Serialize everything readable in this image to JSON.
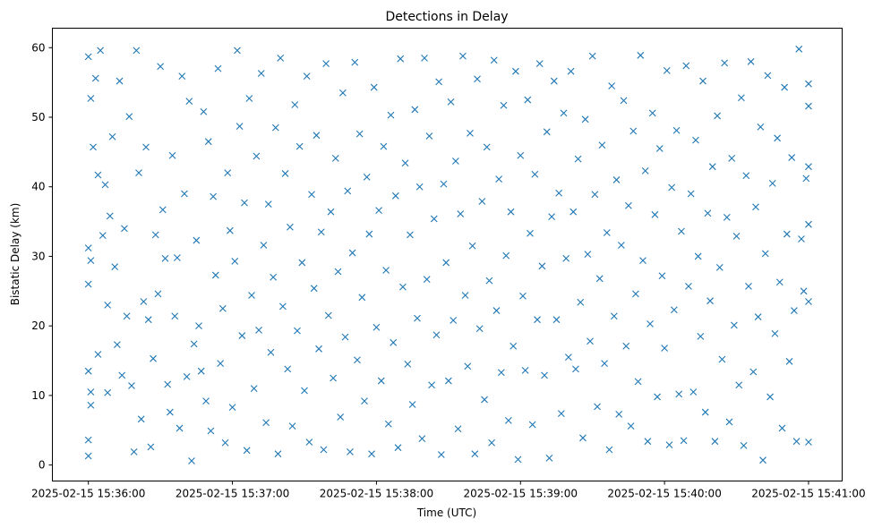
{
  "chart_data": {
    "type": "scatter",
    "title": "Detections in Delay",
    "xlabel": "Time (UTC)",
    "ylabel": "Bistatic Delay (km)",
    "x_units": "seconds since 2025-02-15 15:36:00",
    "xlim": [
      -15,
      314
    ],
    "ylim": [
      -2.3,
      62.8
    ],
    "x_ticks": [
      {
        "value": 0,
        "label": "2025-02-15 15:36:00"
      },
      {
        "value": 60,
        "label": "2025-02-15 15:37:00"
      },
      {
        "value": 120,
        "label": "2025-02-15 15:38:00"
      },
      {
        "value": 180,
        "label": "2025-02-15 15:39:00"
      },
      {
        "value": 240,
        "label": "2025-02-15 15:40:00"
      },
      {
        "value": 300,
        "label": "2025-02-15 15:41:00"
      }
    ],
    "y_ticks": [
      {
        "value": 0,
        "label": "0"
      },
      {
        "value": 10,
        "label": "10"
      },
      {
        "value": 20,
        "label": "20"
      },
      {
        "value": 30,
        "label": "30"
      },
      {
        "value": 40,
        "label": "40"
      },
      {
        "value": 50,
        "label": "50"
      },
      {
        "value": 60,
        "label": "60"
      }
    ],
    "grid": false,
    "marker": "x",
    "color": "#1f77b4",
    "points": [
      [
        0,
        31.2
      ],
      [
        0,
        26
      ],
      [
        0,
        13.5
      ],
      [
        0,
        3.6
      ],
      [
        0,
        1.3
      ],
      [
        0,
        58.7
      ],
      [
        1,
        52.7
      ],
      [
        1,
        29.4
      ],
      [
        1,
        8.6
      ],
      [
        1,
        10.5
      ],
      [
        2,
        45.7
      ],
      [
        3,
        55.6
      ],
      [
        4,
        41.7
      ],
      [
        4,
        15.9
      ],
      [
        5,
        59.6
      ],
      [
        6,
        33
      ],
      [
        7,
        40.3
      ],
      [
        8,
        10.4
      ],
      [
        8,
        23
      ],
      [
        9,
        35.8
      ],
      [
        10,
        47.2
      ],
      [
        11,
        28.5
      ],
      [
        12,
        17.3
      ],
      [
        13,
        55.2
      ],
      [
        14,
        12.9
      ],
      [
        15,
        34
      ],
      [
        16,
        21.4
      ],
      [
        17,
        50.1
      ],
      [
        18,
        11.4
      ],
      [
        19,
        1.9
      ],
      [
        20,
        59.6
      ],
      [
        21,
        42
      ],
      [
        22,
        6.6
      ],
      [
        23,
        23.5
      ],
      [
        24,
        45.7
      ],
      [
        25,
        20.9
      ],
      [
        26,
        2.6
      ],
      [
        27,
        15.3
      ],
      [
        28,
        33.1
      ],
      [
        29,
        24.6
      ],
      [
        30,
        57.3
      ],
      [
        31,
        36.7
      ],
      [
        32,
        29.7
      ],
      [
        33,
        11.6
      ],
      [
        34,
        7.6
      ],
      [
        35,
        44.5
      ],
      [
        36,
        21.4
      ],
      [
        37,
        29.8
      ],
      [
        38,
        5.3
      ],
      [
        39,
        55.9
      ],
      [
        40,
        39
      ],
      [
        41,
        12.7
      ],
      [
        42,
        52.3
      ],
      [
        43,
        0.6
      ],
      [
        44,
        17.4
      ],
      [
        45,
        32.3
      ],
      [
        46,
        20
      ],
      [
        47,
        13.5
      ],
      [
        48,
        50.8
      ],
      [
        49,
        9.2
      ],
      [
        50,
        46.5
      ],
      [
        51,
        4.9
      ],
      [
        52,
        38.6
      ],
      [
        53,
        27.3
      ],
      [
        54,
        57
      ],
      [
        55,
        14.6
      ],
      [
        56,
        22.5
      ],
      [
        57,
        3.2
      ],
      [
        58,
        42
      ],
      [
        59,
        33.7
      ],
      [
        60,
        8.3
      ],
      [
        61,
        29.3
      ],
      [
        62,
        59.6
      ],
      [
        63,
        48.7
      ],
      [
        64,
        18.6
      ],
      [
        65,
        37.7
      ],
      [
        66,
        2.1
      ],
      [
        67,
        52.7
      ],
      [
        68,
        24.4
      ],
      [
        69,
        11
      ],
      [
        70,
        44.4
      ],
      [
        71,
        19.4
      ],
      [
        72,
        56.3
      ],
      [
        73,
        31.6
      ],
      [
        74,
        6.1
      ],
      [
        75,
        37.5
      ],
      [
        76,
        16.2
      ],
      [
        77,
        27
      ],
      [
        78,
        48.5
      ],
      [
        79,
        1.6
      ],
      [
        80,
        58.5
      ],
      [
        81,
        22.8
      ],
      [
        82,
        41.9
      ],
      [
        83,
        13.8
      ],
      [
        84,
        34.2
      ],
      [
        85,
        5.6
      ],
      [
        86,
        51.8
      ],
      [
        87,
        19.3
      ],
      [
        88,
        45.8
      ],
      [
        89,
        29.1
      ],
      [
        90,
        10.7
      ],
      [
        91,
        55.9
      ],
      [
        92,
        3.3
      ],
      [
        93,
        38.9
      ],
      [
        94,
        25.4
      ],
      [
        95,
        47.4
      ],
      [
        96,
        16.7
      ],
      [
        97,
        33.5
      ],
      [
        98,
        2.2
      ],
      [
        99,
        57.7
      ],
      [
        100,
        21.5
      ],
      [
        101,
        36.4
      ],
      [
        102,
        12.5
      ],
      [
        103,
        44.1
      ],
      [
        104,
        27.8
      ],
      [
        105,
        6.9
      ],
      [
        106,
        53.5
      ],
      [
        107,
        18.4
      ],
      [
        108,
        39.4
      ],
      [
        109,
        1.9
      ],
      [
        110,
        30.5
      ],
      [
        111,
        57.9
      ],
      [
        112,
        15.1
      ],
      [
        113,
        47.6
      ],
      [
        114,
        24.1
      ],
      [
        115,
        9.2
      ],
      [
        116,
        41.4
      ],
      [
        117,
        33.2
      ],
      [
        118,
        1.6
      ],
      [
        119,
        54.3
      ],
      [
        120,
        19.8
      ],
      [
        121,
        36.6
      ],
      [
        122,
        12.1
      ],
      [
        123,
        45.8
      ],
      [
        124,
        28
      ],
      [
        125,
        5.9
      ],
      [
        126,
        50.3
      ],
      [
        127,
        17.6
      ],
      [
        128,
        38.7
      ],
      [
        129,
        2.5
      ],
      [
        130,
        58.4
      ],
      [
        131,
        25.6
      ],
      [
        132,
        43.4
      ],
      [
        133,
        14.5
      ],
      [
        134,
        33.1
      ],
      [
        135,
        8.7
      ],
      [
        136,
        51.1
      ],
      [
        137,
        21.1
      ],
      [
        138,
        40
      ],
      [
        139,
        3.8
      ],
      [
        140,
        58.5
      ],
      [
        141,
        26.7
      ],
      [
        142,
        47.3
      ],
      [
        143,
        11.5
      ],
      [
        144,
        35.4
      ],
      [
        145,
        18.7
      ],
      [
        146,
        55.1
      ],
      [
        147,
        1.5
      ],
      [
        148,
        40.4
      ],
      [
        149,
        29.1
      ],
      [
        150,
        12.1
      ],
      [
        151,
        52.2
      ],
      [
        152,
        20.8
      ],
      [
        153,
        43.7
      ],
      [
        154,
        5.2
      ],
      [
        155,
        36.1
      ],
      [
        156,
        58.8
      ],
      [
        157,
        24.4
      ],
      [
        158,
        14.2
      ],
      [
        159,
        47.7
      ],
      [
        160,
        31.5
      ],
      [
        161,
        1.6
      ],
      [
        162,
        55.5
      ],
      [
        163,
        19.6
      ],
      [
        164,
        37.9
      ],
      [
        165,
        9.4
      ],
      [
        166,
        45.7
      ],
      [
        167,
        26.5
      ],
      [
        168,
        3.2
      ],
      [
        169,
        58.2
      ],
      [
        170,
        22.2
      ],
      [
        171,
        41.1
      ],
      [
        172,
        13.3
      ],
      [
        173,
        51.7
      ],
      [
        174,
        30.1
      ],
      [
        175,
        6.4
      ],
      [
        176,
        36.4
      ],
      [
        177,
        17.1
      ],
      [
        178,
        56.6
      ],
      [
        179,
        0.8
      ],
      [
        180,
        44.5
      ],
      [
        181,
        24.3
      ],
      [
        182,
        13.6
      ],
      [
        183,
        52.5
      ],
      [
        184,
        33.3
      ],
      [
        185,
        5.8
      ],
      [
        186,
        41.8
      ],
      [
        187,
        20.9
      ],
      [
        188,
        57.7
      ],
      [
        189,
        28.6
      ],
      [
        190,
        12.9
      ],
      [
        191,
        47.9
      ],
      [
        192,
        1
      ],
      [
        193,
        35.7
      ],
      [
        194,
        55.2
      ],
      [
        195,
        20.9
      ],
      [
        196,
        39.1
      ],
      [
        197,
        7.4
      ],
      [
        198,
        50.6
      ],
      [
        199,
        29.7
      ],
      [
        200,
        15.5
      ],
      [
        201,
        56.6
      ],
      [
        202,
        36.4
      ],
      [
        203,
        13.8
      ],
      [
        204,
        44
      ],
      [
        205,
        23.4
      ],
      [
        206,
        3.9
      ],
      [
        207,
        49.7
      ],
      [
        208,
        30.3
      ],
      [
        209,
        17.8
      ],
      [
        210,
        58.8
      ],
      [
        211,
        38.9
      ],
      [
        212,
        8.4
      ],
      [
        213,
        26.8
      ],
      [
        214,
        46
      ],
      [
        215,
        14.6
      ],
      [
        216,
        33.4
      ],
      [
        217,
        2.2
      ],
      [
        218,
        54.5
      ],
      [
        219,
        21.4
      ],
      [
        220,
        41
      ],
      [
        221,
        7.3
      ],
      [
        222,
        31.6
      ],
      [
        223,
        52.4
      ],
      [
        224,
        17.1
      ],
      [
        225,
        37.3
      ],
      [
        226,
        5.6
      ],
      [
        227,
        48
      ],
      [
        228,
        24.6
      ],
      [
        229,
        12
      ],
      [
        230,
        58.9
      ],
      [
        231,
        29.4
      ],
      [
        232,
        42.3
      ],
      [
        233,
        3.4
      ],
      [
        234,
        20.3
      ],
      [
        235,
        50.6
      ],
      [
        236,
        36
      ],
      [
        237,
        9.8
      ],
      [
        238,
        45.5
      ],
      [
        239,
        27.2
      ],
      [
        240,
        16.8
      ],
      [
        241,
        56.7
      ],
      [
        242,
        2.9
      ],
      [
        243,
        39.9
      ],
      [
        244,
        22.3
      ],
      [
        245,
        48.1
      ],
      [
        246,
        10.2
      ],
      [
        247,
        33.6
      ],
      [
        248,
        3.5
      ],
      [
        249,
        57.4
      ],
      [
        250,
        25.7
      ],
      [
        251,
        39
      ],
      [
        252,
        10.5
      ],
      [
        253,
        46.7
      ],
      [
        254,
        30
      ],
      [
        255,
        18.5
      ],
      [
        256,
        55.2
      ],
      [
        257,
        7.6
      ],
      [
        258,
        36.2
      ],
      [
        259,
        23.6
      ],
      [
        260,
        42.9
      ],
      [
        261,
        3.4
      ],
      [
        262,
        50.2
      ],
      [
        263,
        28.4
      ],
      [
        264,
        15.2
      ],
      [
        265,
        57.8
      ],
      [
        266,
        35.6
      ],
      [
        267,
        6.2
      ],
      [
        268,
        44.1
      ],
      [
        269,
        20.1
      ],
      [
        270,
        32.9
      ],
      [
        271,
        11.5
      ],
      [
        272,
        52.8
      ],
      [
        273,
        2.8
      ],
      [
        274,
        41.6
      ],
      [
        275,
        25.7
      ],
      [
        276,
        58
      ],
      [
        277,
        13.4
      ],
      [
        278,
        37.1
      ],
      [
        279,
        21.3
      ],
      [
        280,
        48.6
      ],
      [
        281,
        0.7
      ],
      [
        282,
        30.4
      ],
      [
        283,
        56
      ],
      [
        284,
        9.8
      ],
      [
        285,
        40.5
      ],
      [
        286,
        18.9
      ],
      [
        287,
        47
      ],
      [
        288,
        26.3
      ],
      [
        289,
        5.3
      ],
      [
        290,
        54.3
      ],
      [
        291,
        33.2
      ],
      [
        292,
        14.9
      ],
      [
        293,
        44.2
      ],
      [
        294,
        22.2
      ],
      [
        295,
        3.4
      ],
      [
        296,
        59.8
      ],
      [
        297,
        32.5
      ],
      [
        298,
        25
      ],
      [
        299,
        41.2
      ],
      [
        300,
        34.6
      ],
      [
        300,
        51.6
      ],
      [
        300,
        23.5
      ],
      [
        300,
        54.8
      ],
      [
        300,
        3.3
      ],
      [
        300,
        42.9
      ]
    ]
  }
}
